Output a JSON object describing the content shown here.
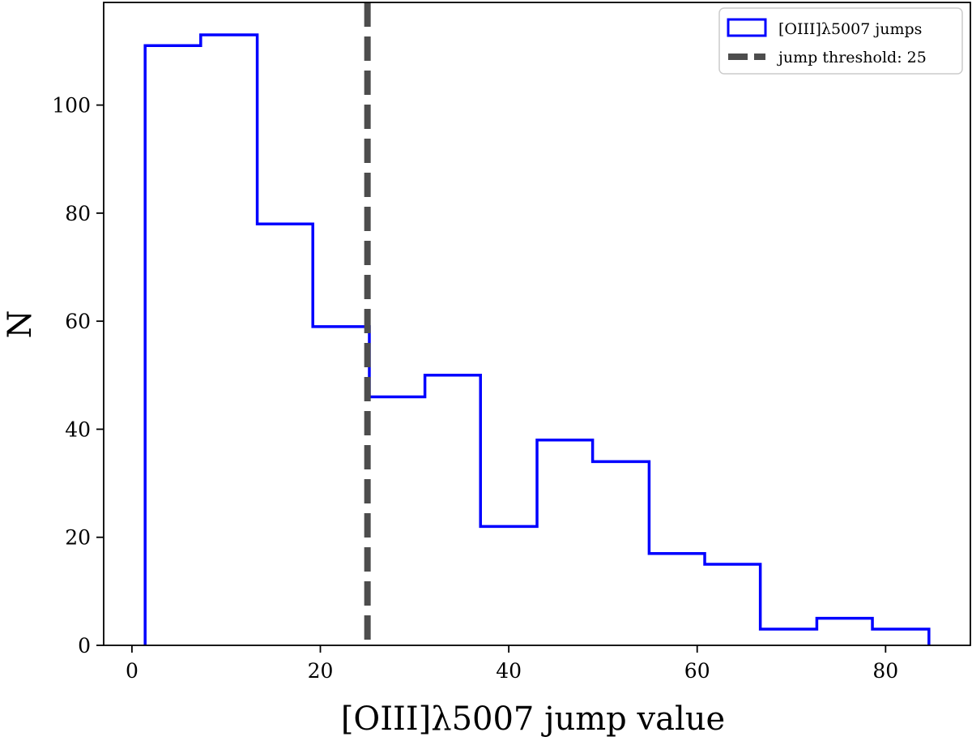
{
  "chart_data": {
    "type": "histogram",
    "title": "",
    "xlabel": "[OIII]λ5007 jump value",
    "ylabel": "N",
    "xlim": [
      -3,
      89
    ],
    "ylim": [
      0,
      119
    ],
    "xticks": [
      0,
      20,
      40,
      60,
      80
    ],
    "yticks": [
      0,
      20,
      40,
      60,
      80,
      100
    ],
    "grid": false,
    "legend_position": "top-right",
    "series": [
      {
        "name": "[OIII]λ5007 jumps",
        "style": "step",
        "color": "#0000ff",
        "bin_edges": [
          1.4,
          7.3,
          13.3,
          19.2,
          25.2,
          31.1,
          37.0,
          43.0,
          48.9,
          54.9,
          60.8,
          66.7,
          72.7,
          78.6,
          84.6
        ],
        "counts": [
          111,
          113,
          78,
          59,
          46,
          50,
          22,
          38,
          34,
          17,
          15,
          3,
          5,
          3
        ]
      }
    ],
    "threshold": {
      "name": "jump threshold: 25",
      "value": 25,
      "color": "#4d4d4d",
      "linestyle": "dashed"
    }
  }
}
